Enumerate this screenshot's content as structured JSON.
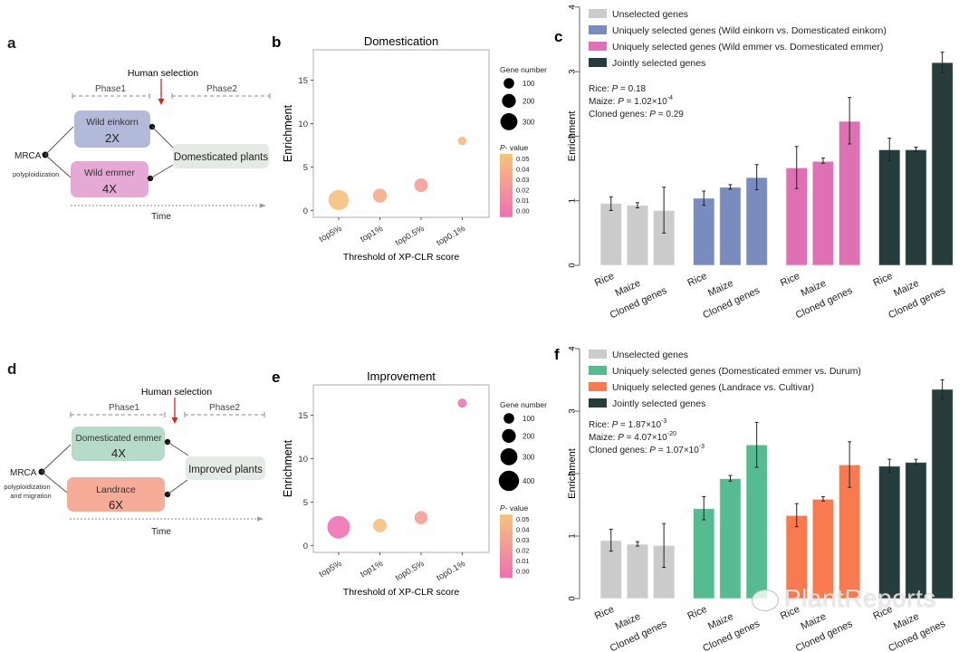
{
  "panels": {
    "a": {
      "label": "a",
      "human_selection": "Human selection",
      "phase1": "Phase1",
      "phase2": "Phase2",
      "mrca": "MRCA",
      "process": "polyploidization",
      "box_top": {
        "name": "Wild einkorn",
        "ploidy": "2X",
        "color": "#b3b9d9"
      },
      "box_bottom": {
        "name": "Wild emmer",
        "ploidy": "4X",
        "color": "#e6a8d4"
      },
      "target": {
        "name": "Domesticated plants",
        "color": "#e4ebe6"
      },
      "time": "Time"
    },
    "d": {
      "label": "d",
      "human_selection": "Human selection",
      "phase1": "Phase1",
      "phase2": "Phase2",
      "mrca": "MRCA",
      "process_line1": "polyploidization",
      "process_line2": "and migration",
      "box_top": {
        "name": "Domesticated emmer",
        "ploidy": "4X",
        "color": "#b4dcc8"
      },
      "box_bottom": {
        "name": "Landrace",
        "ploidy": "6X",
        "color": "#f5ad9a"
      },
      "target": {
        "name": "Improved plants",
        "color": "#e4ebe6"
      },
      "time": "Time"
    }
  },
  "chart_data": [
    {
      "id": "b",
      "panel_label": "b",
      "type": "scatter",
      "title": "Domestication",
      "xlabel": "Threshold of XP-CLR score",
      "ylabel": "Enrichment",
      "categories": [
        "top5%",
        "top1%",
        "top0.5%",
        "top0.1%"
      ],
      "yticks": [
        0,
        5,
        10,
        15
      ],
      "ylim": [
        -0.8,
        18.5
      ],
      "points": [
        {
          "x": "top5%",
          "y": 1.2,
          "gene_number": 300,
          "p_value": 0.052
        },
        {
          "x": "top1%",
          "y": 1.7,
          "gene_number": 110,
          "p_value": 0.04
        },
        {
          "x": "top0.5%",
          "y": 2.9,
          "gene_number": 100,
          "p_value": 0.03
        },
        {
          "x": "top0.1%",
          "y": 8.0,
          "gene_number": 20,
          "p_value": 0.048
        }
      ],
      "size_legend": {
        "title": "Gene number",
        "values": [
          100,
          200,
          300
        ]
      },
      "color_legend": {
        "title_italic": "P",
        "title_rest": "- value",
        "ticks": [
          "0.05",
          "0.04",
          "0.03",
          "0.02",
          "0.01",
          "0.00"
        ],
        "low_color": "#f06fb5",
        "high_color": "#f5c57a"
      }
    },
    {
      "id": "e",
      "panel_label": "e",
      "type": "scatter",
      "title": "Improvement",
      "xlabel": "Threshold of XP-CLR score",
      "ylabel": "Enrichment",
      "categories": [
        "top5%",
        "top1%",
        "top0.5%",
        "top0.1%"
      ],
      "yticks": [
        0,
        5,
        10,
        15
      ],
      "ylim": [
        -0.8,
        18.5
      ],
      "points": [
        {
          "x": "top5%",
          "y": 2.1,
          "gene_number": 400,
          "p_value": 0.002
        },
        {
          "x": "top1%",
          "y": 2.3,
          "gene_number": 100,
          "p_value": 0.052
        },
        {
          "x": "top0.5%",
          "y": 3.2,
          "gene_number": 90,
          "p_value": 0.03
        },
        {
          "x": "top0.1%",
          "y": 16.4,
          "gene_number": 25,
          "p_value": 0.005
        }
      ],
      "size_legend": {
        "title": "Gene number",
        "values": [
          100,
          200,
          300,
          400
        ]
      },
      "color_legend": {
        "title_italic": "P",
        "title_rest": "- value",
        "ticks": [
          "0.05",
          "0.04",
          "0.03",
          "0.02",
          "0.01",
          "0.00"
        ],
        "low_color": "#f06fb5",
        "high_color": "#f5c57a"
      }
    },
    {
      "id": "c",
      "panel_label": "c",
      "type": "bar",
      "ylabel": "Enrichment",
      "ylim": [
        0,
        4
      ],
      "yticks": [
        0,
        1,
        2,
        3,
        4
      ],
      "categories": [
        "Rice",
        "Maize",
        "Cloned genes"
      ],
      "series": [
        {
          "name": "Unselected genes",
          "color": "#cbcbcb",
          "values": [
            0.96,
            0.93,
            0.85
          ],
          "err_low": [
            0.85,
            0.89,
            0.5
          ],
          "err_high": [
            1.06,
            0.97,
            1.21
          ]
        },
        {
          "name": "Uniquely selected genes (Wild einkorn vs. Domesticated einkorn)",
          "color": "#7a8bbf",
          "values": [
            1.04,
            1.21,
            1.36
          ],
          "err_low": [
            0.93,
            1.18,
            1.17
          ],
          "err_high": [
            1.15,
            1.25,
            1.56
          ]
        },
        {
          "name": "Uniquely selected genes (Wild emmer vs. Domesticated emmer)",
          "color": "#e070b4",
          "values": [
            1.51,
            1.61,
            2.23
          ],
          "err_low": [
            1.19,
            1.58,
            1.88
          ],
          "err_high": [
            1.84,
            1.66,
            2.6
          ]
        },
        {
          "name": "Jointly selected genes",
          "color": "#263d3c",
          "values": [
            1.79,
            1.79,
            3.14
          ],
          "err_low": [
            1.62,
            1.76,
            2.98
          ],
          "err_high": [
            1.97,
            1.83,
            3.3
          ]
        }
      ],
      "annotations": [
        {
          "label": "Rice: ",
          "p_text": "P",
          "value": " = 0.18",
          "exp": ""
        },
        {
          "label": "Maize: ",
          "p_text": "P",
          "value": "  = 1.02×10",
          "exp": "-4"
        },
        {
          "label": "Cloned genes: ",
          "p_text": "P",
          "value": " = 0.29",
          "exp": ""
        }
      ]
    },
    {
      "id": "f",
      "panel_label": "f",
      "type": "bar",
      "ylabel": "Enrichment",
      "ylim": [
        0,
        4
      ],
      "yticks": [
        0,
        1,
        2,
        3,
        4
      ],
      "categories": [
        "Rice",
        "Maize",
        "Cloned genes"
      ],
      "series": [
        {
          "name": "Unselected genes",
          "color": "#cbcbcb",
          "values": [
            0.93,
            0.87,
            0.85
          ],
          "err_low": [
            0.76,
            0.84,
            0.5
          ],
          "err_high": [
            1.11,
            0.91,
            1.2
          ]
        },
        {
          "name": "Uniquely selected genes (Domesticated emmer vs. Durum)",
          "color": "#57bb91",
          "values": [
            1.44,
            1.92,
            2.46
          ],
          "err_low": [
            1.26,
            1.88,
            2.1
          ],
          "err_high": [
            1.63,
            1.97,
            2.82
          ]
        },
        {
          "name": "Uniquely selected genes (Landrace vs. Cultivar)",
          "color": "#f97a4f",
          "values": [
            1.33,
            1.59,
            2.14
          ],
          "err_low": [
            1.15,
            1.56,
            1.78
          ],
          "err_high": [
            1.52,
            1.63,
            2.51
          ]
        },
        {
          "name": "Jointly selected genes",
          "color": "#263d3c",
          "values": [
            2.12,
            2.18,
            3.35
          ],
          "err_low": [
            2.02,
            2.14,
            3.19
          ],
          "err_high": [
            2.23,
            2.23,
            3.5
          ]
        }
      ],
      "annotations": [
        {
          "label": "Rice: ",
          "p_text": "P",
          "value": " = 1.87×10",
          "exp": "-3"
        },
        {
          "label": "Maize: ",
          "p_text": "P",
          "value": "  = 4.07×10",
          "exp": "-20"
        },
        {
          "label": "Cloned genes: ",
          "p_text": "P",
          "value": " = 1.07×10",
          "exp": "-3"
        }
      ]
    }
  ],
  "watermark": {
    "text": "PlantReports",
    "icon": "wechat-icon"
  }
}
